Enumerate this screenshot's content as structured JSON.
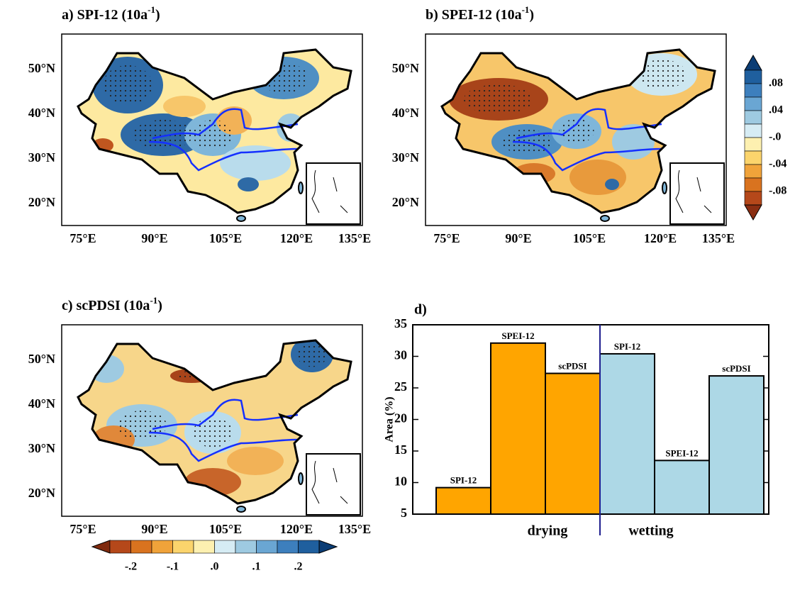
{
  "panels": [
    {
      "title": "a) SPI-12 (10a",
      "title_superscript": "-1",
      "title_end": ")"
    },
    {
      "title": "b) SPEI-12 (10a",
      "title_superscript": "-1",
      "title_end": ")"
    },
    {
      "title": "c) scPDSI (10a",
      "title_superscript": "-1",
      "title_end": ")"
    }
  ],
  "map_xticks": [
    "75°E",
    "90°E",
    "105°E",
    "120°E",
    "135°E"
  ],
  "map_yticks": [
    "50°N",
    "40°N",
    "30°N",
    "20°N"
  ],
  "colorbar_b": {
    "labels": [
      ".08",
      ".04",
      "-.0",
      "-.04",
      "-.08"
    ],
    "colors": [
      "#0b3d75",
      "#1f5f9e",
      "#3d7fbd",
      "#6aa6d3",
      "#9ecae1",
      "#d6ecf4",
      "#fdf0b0",
      "#fbd46c",
      "#f0a33a",
      "#d9731f",
      "#b5481a",
      "#8a2e12"
    ]
  },
  "colorbar_c": {
    "labels": [
      "-.2",
      "-.1",
      ".0",
      ".1",
      ".2"
    ],
    "colors": [
      "#7f2a0e",
      "#b5481a",
      "#d9731f",
      "#f0a33a",
      "#fbd46c",
      "#fdf0b0",
      "#d6ecf4",
      "#9ecae1",
      "#6aa6d3",
      "#3d7fbd",
      "#1f5f9e",
      "#0b3d75"
    ]
  },
  "chart_data": {
    "type": "bar",
    "title": "d)",
    "ylabel": "Area (%)",
    "ylim": [
      5,
      35
    ],
    "yticks": [
      5,
      10,
      15,
      20,
      25,
      30,
      35
    ],
    "divider_color": "#1f1f8f",
    "groups": [
      {
        "name": "drying",
        "color": "#ffa500",
        "categories": [
          "SPI-12",
          "SPEI-12",
          "scPDSI"
        ],
        "values": [
          9.2,
          32.1,
          27.3
        ]
      },
      {
        "name": "wetting",
        "color": "#add8e6",
        "categories": [
          "SPI-12",
          "SPEI-12",
          "scPDSI"
        ],
        "values": [
          30.4,
          13.5,
          26.9
        ]
      }
    ]
  }
}
